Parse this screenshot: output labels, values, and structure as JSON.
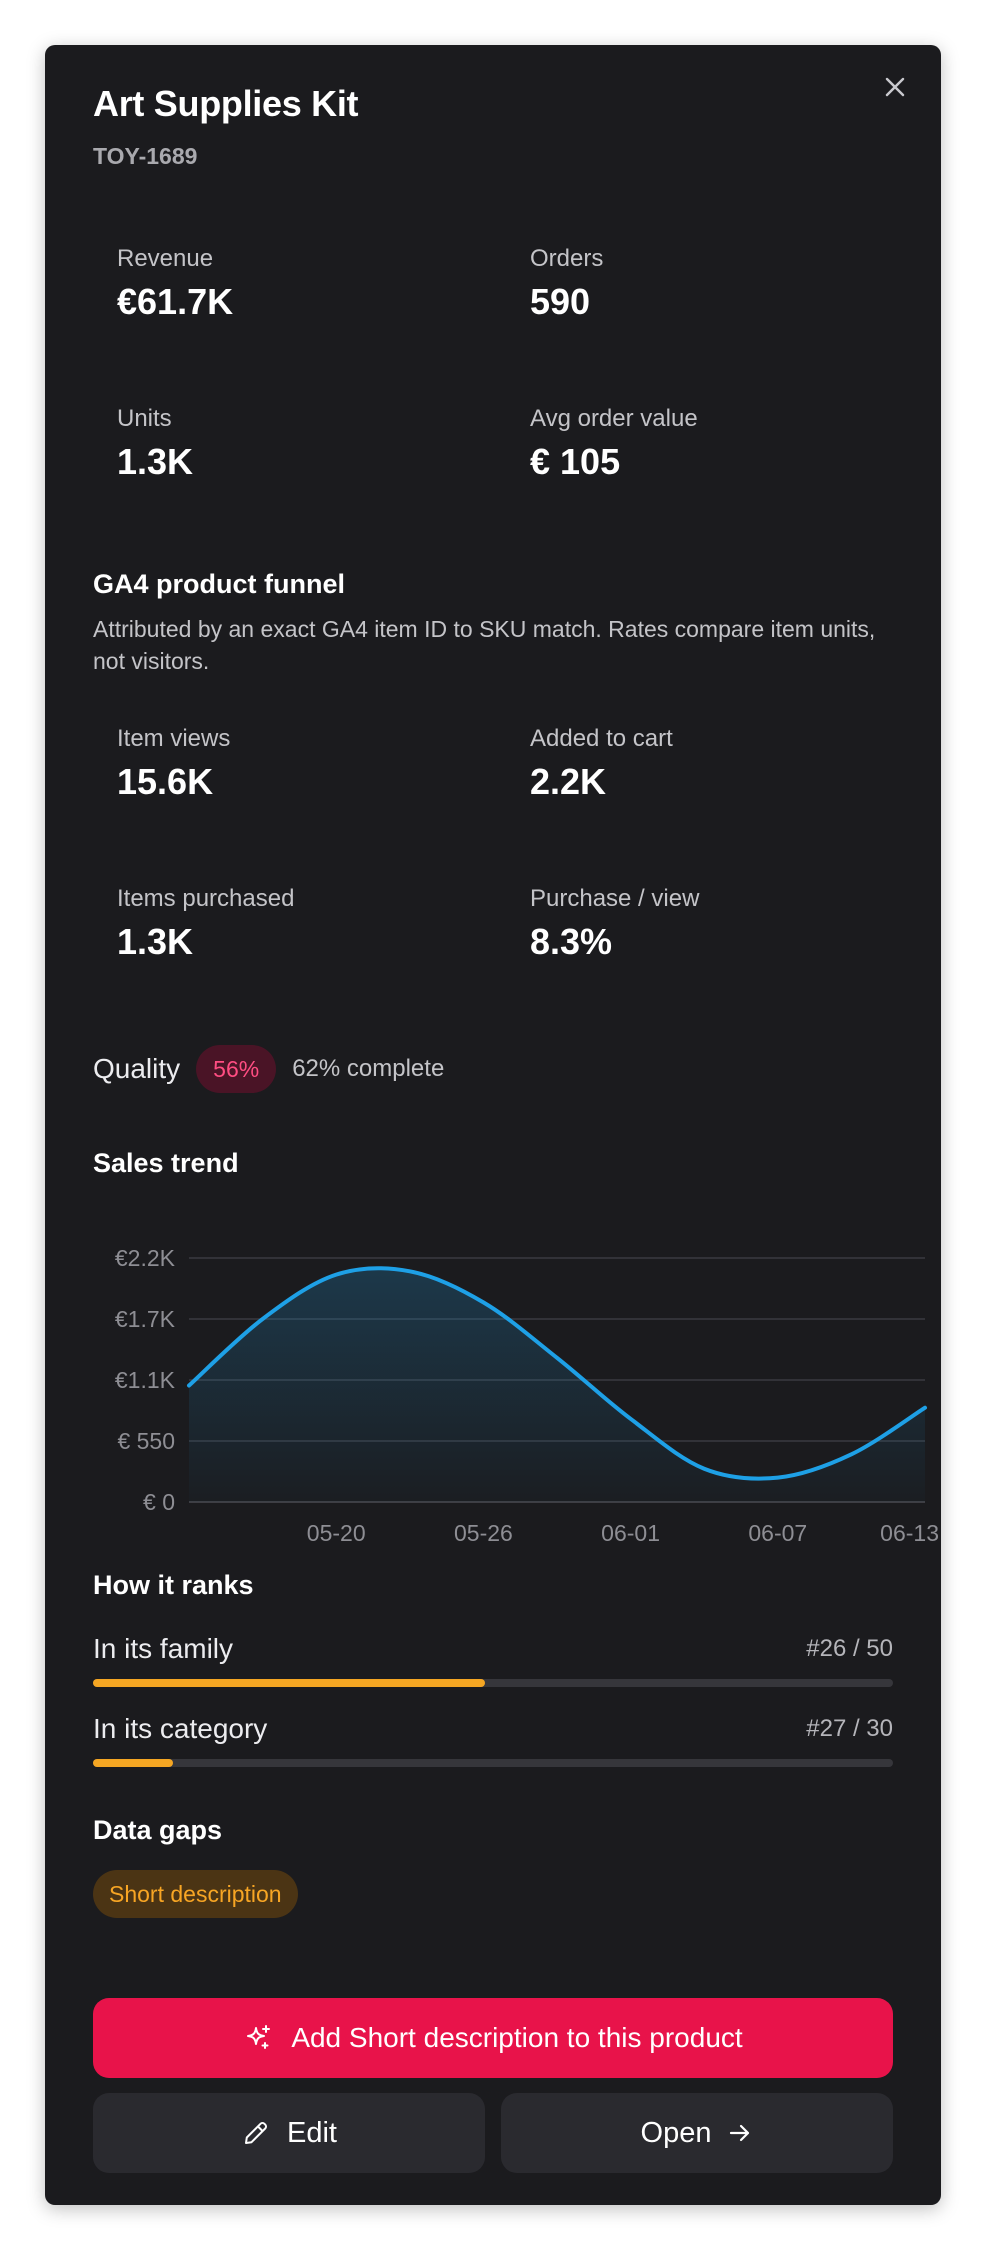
{
  "product": {
    "title": "Art Supplies Kit",
    "sku": "TOY-1689"
  },
  "stats": [
    {
      "label": "Revenue",
      "value": "€61.7K"
    },
    {
      "label": "Orders",
      "value": "590"
    },
    {
      "label": "Units",
      "value": "1.3K"
    },
    {
      "label": "Avg order value",
      "value": "€ 105"
    }
  ],
  "funnel": {
    "title": "GA4 product funnel",
    "description": "Attributed by an exact GA4 item ID to SKU match. Rates compare item units, not visitors.",
    "stats": [
      {
        "label": "Item views",
        "value": "15.6K"
      },
      {
        "label": "Added to cart",
        "value": "2.2K"
      },
      {
        "label": "Items purchased",
        "value": "1.3K"
      },
      {
        "label": "Purchase / view",
        "value": "8.3%"
      }
    ]
  },
  "quality": {
    "label": "Quality",
    "badge": "56%",
    "complete": "62% complete",
    "badge_color": "#ff4d82"
  },
  "sales_trend": {
    "title": "Sales trend"
  },
  "chart_data": {
    "type": "area",
    "title": "Sales trend",
    "xlabel": "",
    "ylabel": "",
    "x": [
      "05-14",
      "05-17",
      "05-20",
      "05-23",
      "05-26",
      "05-29",
      "06-01",
      "06-04",
      "06-07",
      "06-10",
      "06-13"
    ],
    "series": [
      {
        "values": [
          1050,
          1650,
          2050,
          2080,
          1800,
          1300,
          750,
          300,
          220,
          430,
          850
        ]
      }
    ],
    "x_tick_labels": [
      "05-20",
      "05-26",
      "06-01",
      "06-07",
      "06-13"
    ],
    "y_tick_labels": [
      "€ 0",
      "€ 550",
      "€1.1K",
      "€1.7K",
      "€2.2K"
    ],
    "y_ticks": [
      0,
      550,
      1100,
      1650,
      2200
    ],
    "ylim": [
      0,
      2200
    ],
    "grid": true,
    "legend": "none",
    "line_color": "#1ea0e6"
  },
  "ranks": {
    "title": "How it ranks",
    "items": [
      {
        "label": "In its family",
        "value": "#26 / 50",
        "fraction": 0.49
      },
      {
        "label": "In its category",
        "value": "#27 / 30",
        "fraction": 0.1
      }
    ],
    "bar_color": "#f5a623"
  },
  "data_gaps": {
    "title": "Data gaps",
    "chips": [
      "Short description"
    ]
  },
  "actions": {
    "primary": "Add Short description to this product",
    "edit": "Edit",
    "open": "Open"
  },
  "icons": {
    "close": "close-icon",
    "sparkle": "sparkle-icon",
    "pencil": "pencil-icon",
    "arrow": "arrow-right-icon"
  }
}
